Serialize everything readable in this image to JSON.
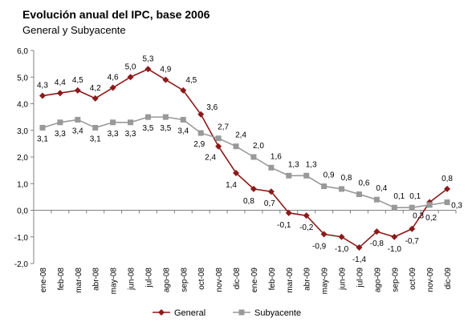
{
  "chart_data": {
    "type": "line",
    "title": "Evolución anual del IPC, base 2006",
    "subtitle": "General y Subyacente",
    "xlabel": "",
    "ylabel": "",
    "ylim": [
      -2.0,
      6.0
    ],
    "yticks": [
      "6,0",
      "5,0",
      "4,0",
      "3,0",
      "2,0",
      "1,0",
      "0,0",
      "-1,0",
      "-2,0"
    ],
    "ytick_values": [
      6,
      5,
      4,
      3,
      2,
      1,
      0,
      -1,
      -2
    ],
    "categories": [
      "ene-08",
      "feb-08",
      "mar-08",
      "abr-08",
      "may-08",
      "jun-08",
      "jul-08",
      "ago-08",
      "sep-08",
      "oct-08",
      "nov-08",
      "dic-08",
      "ene-09",
      "feb-09",
      "mar-09",
      "abr-09",
      "may-09",
      "jun-09",
      "jul-09",
      "ago-09",
      "sep-09",
      "oct-09",
      "nov-09",
      "dic-09"
    ],
    "grid": false,
    "legend": "bottom",
    "series": [
      {
        "name": "General",
        "color": "#8B1A1A",
        "marker": "diamond",
        "values": [
          4.3,
          4.4,
          4.5,
          4.2,
          4.6,
          5.0,
          5.3,
          4.9,
          4.5,
          3.6,
          2.4,
          1.4,
          0.8,
          0.7,
          -0.1,
          -0.2,
          -0.9,
          -1.0,
          -1.4,
          -0.8,
          -1.0,
          -0.7,
          0.3,
          0.8
        ],
        "labels": [
          "4,3",
          "4,4",
          "4,5",
          "4,2",
          "4,6",
          "5,0",
          "5,3",
          "4,9",
          "4,5",
          "3,6",
          "2,4",
          "1,4",
          "0,8",
          "0,7",
          "-0,1",
          "-0,2",
          "-0,9",
          "-1,0",
          "-1,4",
          "-0,8",
          "-1,0",
          "-0,7",
          "0,3",
          "0,8"
        ]
      },
      {
        "name": "Subyacente",
        "color": "#999999",
        "marker": "square",
        "values": [
          3.1,
          3.3,
          3.4,
          3.1,
          3.3,
          3.3,
          3.5,
          3.5,
          3.4,
          2.9,
          2.7,
          2.4,
          2.0,
          1.6,
          1.3,
          1.3,
          0.9,
          0.8,
          0.6,
          0.4,
          0.1,
          0.1,
          0.2,
          0.3
        ],
        "labels": [
          "3,1",
          "3,3",
          "3,4",
          "3,1",
          "3,3",
          "3,3",
          "3,5",
          "3,5",
          "3,4",
          "2,9",
          "2,7",
          "2,4",
          "2,0",
          "1,6",
          "1,3",
          "1,3",
          "0,9",
          "0,8",
          "0,6",
          "0,4",
          "0,1",
          "0,1",
          "0,2",
          "0,3"
        ]
      }
    ]
  }
}
